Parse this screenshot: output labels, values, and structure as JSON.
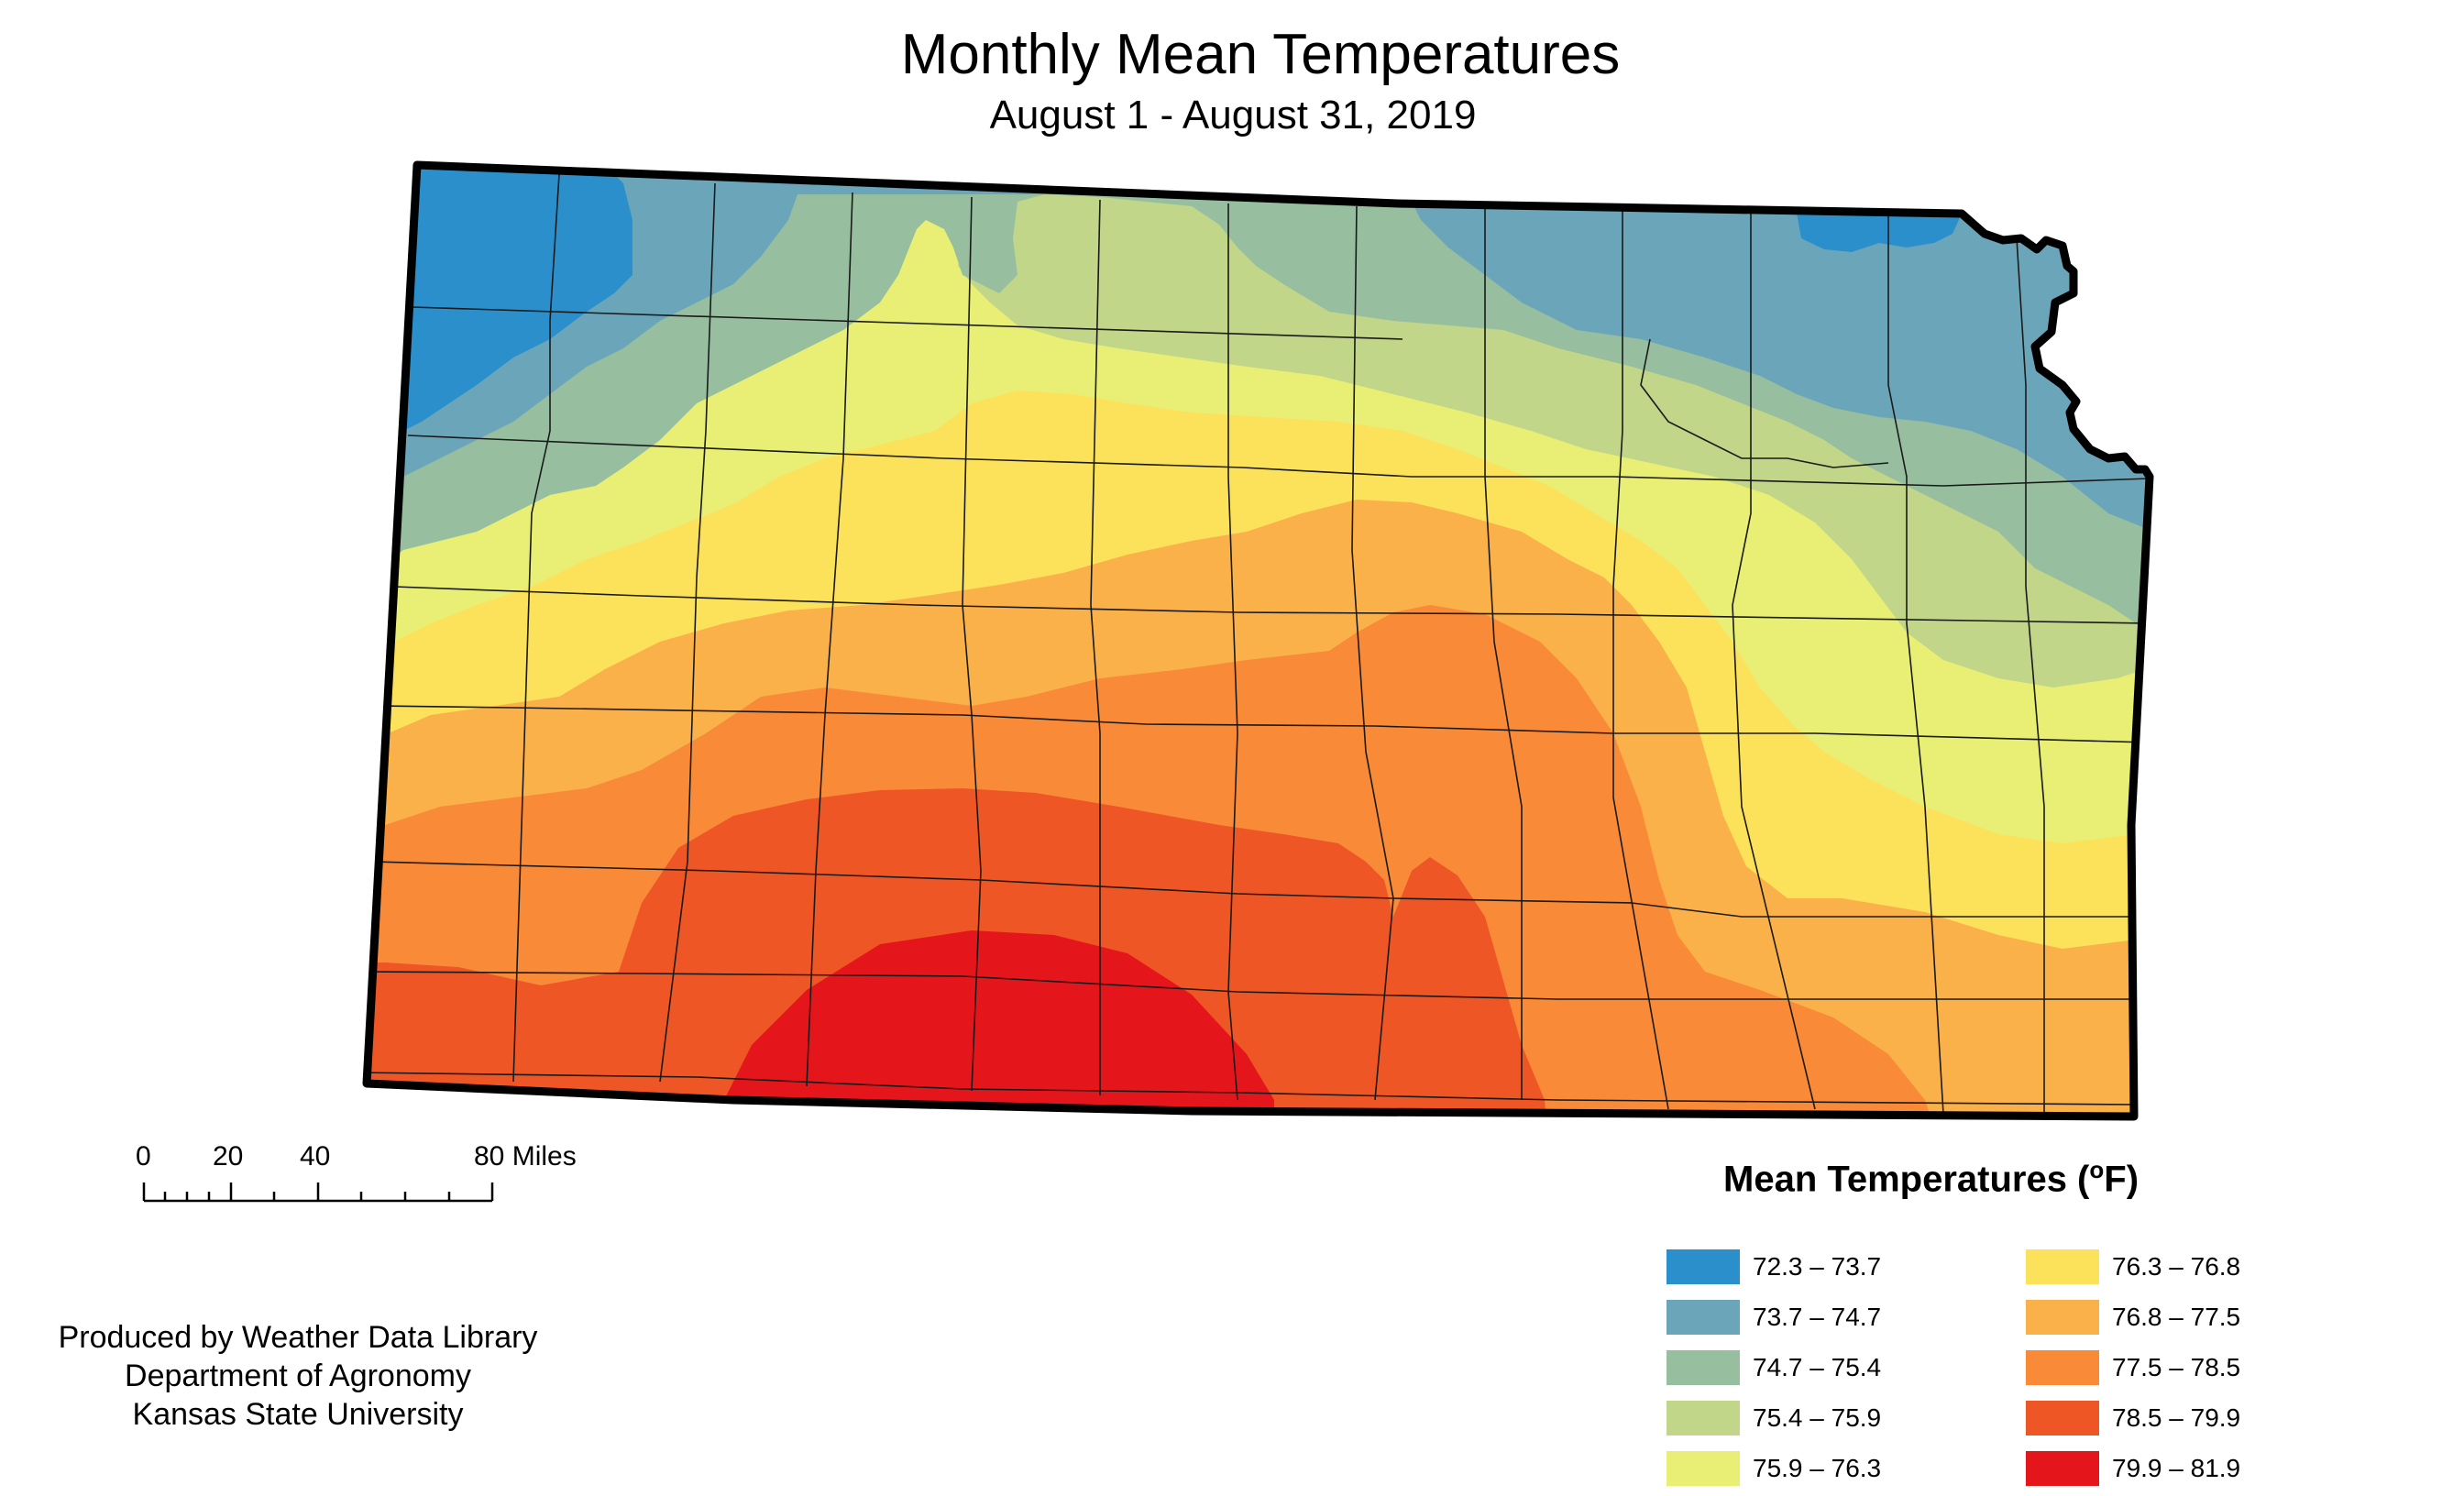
{
  "map": {
    "title": "Monthly Mean Temperatures",
    "subtitle": "August 1 - August 31, 2019",
    "region": "Kansas"
  },
  "scale_bar": {
    "ticks": [
      "0",
      "20",
      "40",
      "80 Miles"
    ]
  },
  "credits": {
    "line1": "Produced by Weather Data Library",
    "line2": "Department of Agronomy",
    "line3": "Kansas State University"
  },
  "legend": {
    "title": "Mean Temperatures (",
    "unit_sup": "o",
    "unit_after": "F)",
    "classes": [
      {
        "label": "72.3 – 73.7",
        "color": "#2b8fcb"
      },
      {
        "label": "73.7 – 74.7",
        "color": "#6aa5b9"
      },
      {
        "label": "74.7 – 75.4",
        "color": "#97bf9f"
      },
      {
        "label": "75.4 – 75.9",
        "color": "#c2d68a"
      },
      {
        "label": "75.9 – 76.3",
        "color": "#e8ef74"
      },
      {
        "label": "76.3 – 76.8",
        "color": "#fbe25a"
      },
      {
        "label": "76.8 – 77.5",
        "color": "#fbb14a"
      },
      {
        "label": "77.5 – 78.5",
        "color": "#f88a38"
      },
      {
        "label": "78.5 – 79.9",
        "color": "#ef5626"
      },
      {
        "label": "79.9 – 81.9",
        "color": "#e5161b"
      }
    ]
  }
}
